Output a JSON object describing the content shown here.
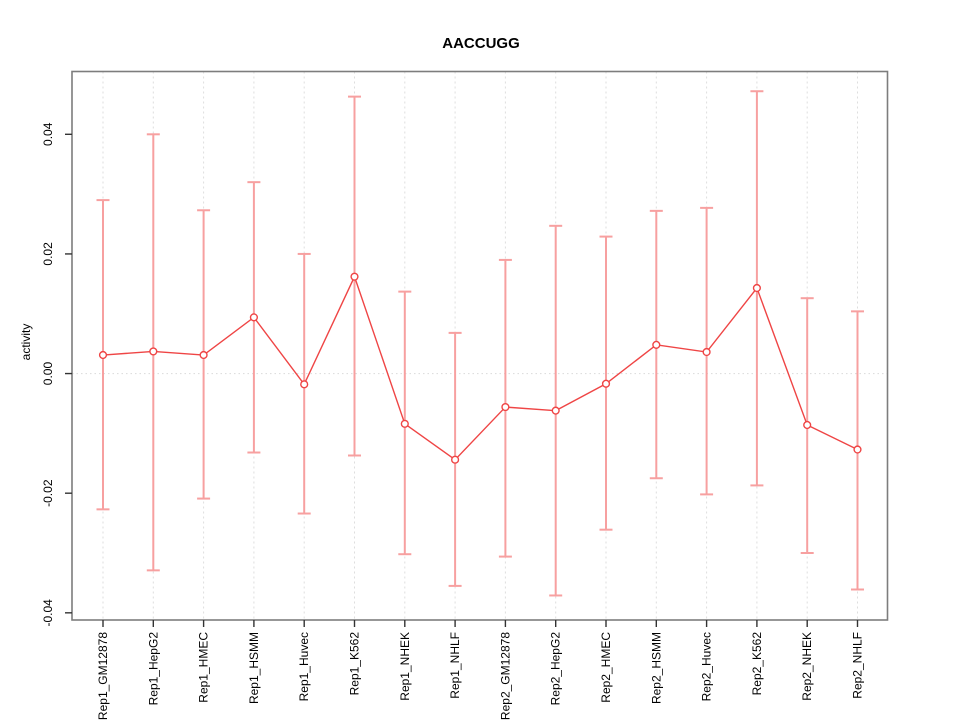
{
  "title": "AACCUGG",
  "ylabel": "activity",
  "chart_data": {
    "type": "line",
    "title": "AACCUGG",
    "xlabel": "",
    "ylabel": "activity",
    "legend_position": "none",
    "grid": "vertical-dashed-per-category, dotted-horizontal-zero-line",
    "categories": [
      "Rep1_GM12878",
      "Rep1_HepG2",
      "Rep1_HMEC",
      "Rep1_HSMM",
      "Rep1_Huvec",
      "Rep1_K562",
      "Rep1_NHEK",
      "Rep1_NHLF",
      "Rep2_GM12878",
      "Rep2_HepG2",
      "Rep2_HMEC",
      "Rep2_HSMM",
      "Rep2_Huvec",
      "Rep2_K562",
      "Rep2_NHEK",
      "Rep2_NHLF"
    ],
    "series": [
      {
        "name": "activity",
        "marker": "open-circle",
        "values": [
          0.0031,
          0.0037,
          0.0031,
          0.0094,
          -0.0018,
          0.0162,
          -0.0084,
          -0.0144,
          -0.0056,
          -0.0062,
          -0.0017,
          0.0048,
          0.0036,
          0.0143,
          -0.0086,
          -0.0127
        ],
        "error_upper": [
          0.029,
          0.04,
          0.0273,
          0.032,
          0.02,
          0.0463,
          0.0137,
          0.0068,
          0.019,
          0.0247,
          0.0229,
          0.0272,
          0.0277,
          0.0472,
          0.0126,
          0.0104
        ],
        "error_lower": [
          -0.0227,
          -0.0329,
          -0.0209,
          -0.0132,
          -0.0234,
          -0.0137,
          -0.0302,
          -0.0355,
          -0.0306,
          -0.0371,
          -0.0261,
          -0.0175,
          -0.0202,
          -0.0187,
          -0.03,
          -0.0361
        ]
      }
    ],
    "ylim": [
      -0.0412,
      0.0505
    ],
    "yticks": [
      -0.04,
      -0.02,
      0,
      0.02,
      0.04
    ],
    "ytick_labels": [
      "-0.04",
      "-0.02",
      "0.00",
      "0.02",
      "0.04"
    ],
    "colors": {
      "line": "#ef4545",
      "error_bar": "#f7a0a0",
      "marker_fill": "#ffffff",
      "grid": "#dedede",
      "box": "#7d7d7d",
      "tick": "#333333",
      "text": "#000000"
    }
  }
}
